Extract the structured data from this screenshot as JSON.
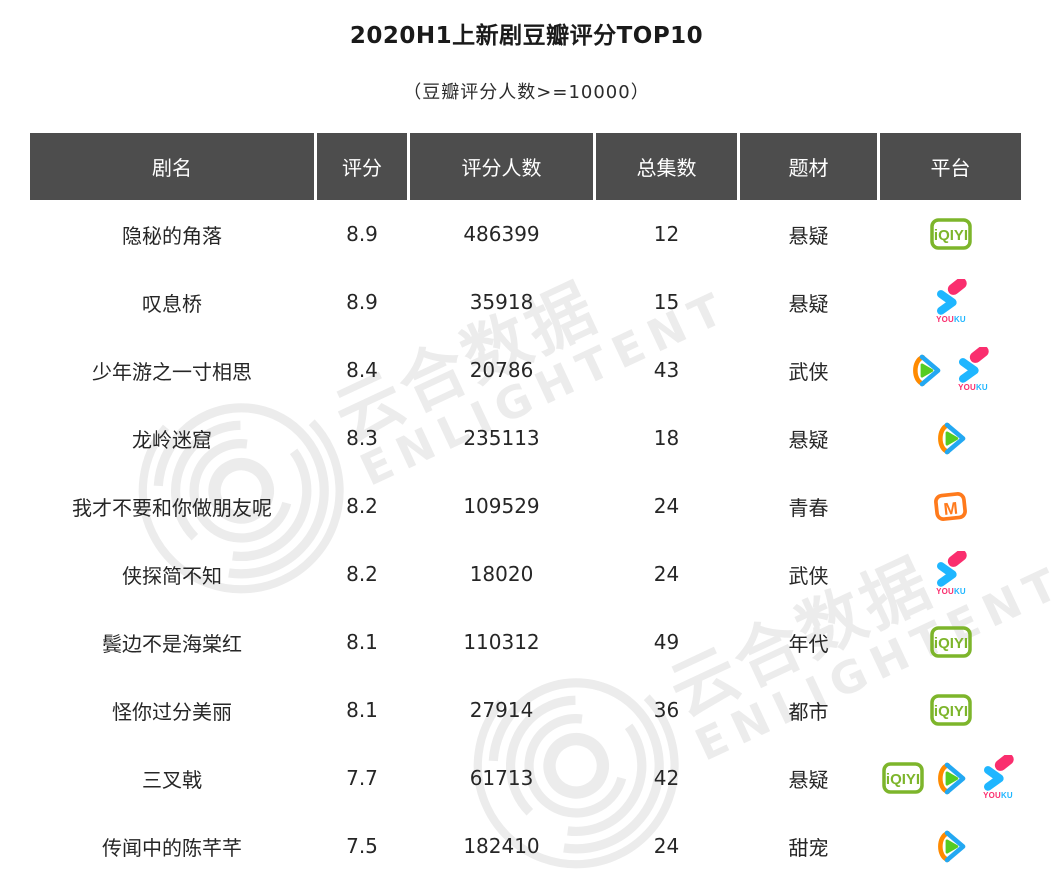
{
  "chart_data": {
    "type": "table",
    "title": "2020H1上新剧豆瓣评分TOP10",
    "subtitle": "（豆瓣评分人数>=10000）",
    "columns": [
      "剧名",
      "评分",
      "评分人数",
      "总集数",
      "题材",
      "平台"
    ],
    "rows": [
      {
        "title": "隐秘的角落",
        "rating": "8.9",
        "votes": "486399",
        "episodes": "12",
        "genre": "悬疑",
        "platforms": [
          "iqiyi"
        ]
      },
      {
        "title": "叹息桥",
        "rating": "8.9",
        "votes": "35918",
        "episodes": "15",
        "genre": "悬疑",
        "platforms": [
          "youku"
        ]
      },
      {
        "title": "少年游之一寸相思",
        "rating": "8.4",
        "votes": "20786",
        "episodes": "43",
        "genre": "武侠",
        "platforms": [
          "tencent",
          "youku"
        ]
      },
      {
        "title": "龙岭迷窟",
        "rating": "8.3",
        "votes": "235113",
        "episodes": "18",
        "genre": "悬疑",
        "platforms": [
          "tencent"
        ]
      },
      {
        "title": "我才不要和你做朋友呢",
        "rating": "8.2",
        "votes": "109529",
        "episodes": "24",
        "genre": "青春",
        "platforms": [
          "mgtv"
        ]
      },
      {
        "title": "侠探简不知",
        "rating": "8.2",
        "votes": "18020",
        "episodes": "24",
        "genre": "武侠",
        "platforms": [
          "youku"
        ]
      },
      {
        "title": "鬓边不是海棠红",
        "rating": "8.1",
        "votes": "110312",
        "episodes": "49",
        "genre": "年代",
        "platforms": [
          "iqiyi"
        ]
      },
      {
        "title": "怪你过分美丽",
        "rating": "8.1",
        "votes": "27914",
        "episodes": "36",
        "genre": "都市",
        "platforms": [
          "iqiyi"
        ]
      },
      {
        "title": "三叉戟",
        "rating": "7.7",
        "votes": "61713",
        "episodes": "42",
        "genre": "悬疑",
        "platforms": [
          "iqiyi",
          "tencent",
          "youku"
        ]
      },
      {
        "title": "传闻中的陈芊芊",
        "rating": "7.5",
        "votes": "182410",
        "episodes": "24",
        "genre": "甜宠",
        "platforms": [
          "tencent"
        ]
      }
    ]
  },
  "watermark": {
    "text_cn": "云合数据",
    "text_en": "ENLIGHTENT"
  },
  "platform_logos": {
    "iqiyi_label": "iQIYI",
    "youku_label_you": "YOU",
    "youku_label_ku": "KU",
    "mgtv_label": "M"
  },
  "colors": {
    "header_bg": "#4d4d4d",
    "header_text": "#ffffff",
    "body_text": "#262626",
    "watermark_gray": "#ececec",
    "iqiyi_green": "#7db52b",
    "tencent_orange": "#ff8a00",
    "tencent_blue": "#23a8f2",
    "tencent_green": "#55cc22",
    "youku_pink": "#fa2e6e",
    "youku_blue": "#1fb6ff",
    "mgtv_orange": "#ff7a1c"
  }
}
